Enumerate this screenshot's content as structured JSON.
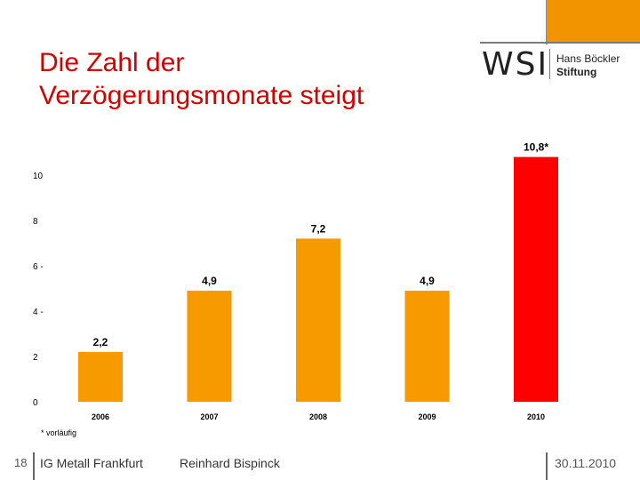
{
  "slide": {
    "title_line1": "Die Zahl der",
    "title_line2": "Verzögerungsmonate steigt",
    "footnote": "* vorläufig"
  },
  "logo": {
    "wsi": "WSI",
    "line1": "Hans Böckler",
    "line2": "Stiftung"
  },
  "footer": {
    "page": "18",
    "organization": "IG Metall Frankfurt",
    "author": "Reinhard Bispinck",
    "date": "30.11.2010"
  },
  "colors": {
    "bar": "#f79a00",
    "highlight": "#ff0000",
    "title": "#d40000",
    "accent": "#f29400"
  },
  "chart_data": {
    "type": "bar",
    "title": "Die Zahl der Verzögerungsmonate steigt",
    "categories": [
      "2006",
      "2007",
      "2008",
      "2009",
      "2010"
    ],
    "values": [
      2.2,
      4.9,
      7.2,
      4.9,
      10.8
    ],
    "data_labels": [
      "2,2",
      "4,9",
      "7,2",
      "4,9",
      "10,8*"
    ],
    "highlight_index": 4,
    "y_ticks": [
      {
        "value": 0,
        "label": "0"
      },
      {
        "value": 2,
        "label": "2"
      },
      {
        "value": 4,
        "label": "4 -"
      },
      {
        "value": 6,
        "label": "6 -"
      },
      {
        "value": 8,
        "label": "8"
      },
      {
        "value": 10,
        "label": "10"
      }
    ],
    "ylim": [
      0,
      10.8
    ],
    "xlabel": "",
    "ylabel": "",
    "grid": false
  }
}
